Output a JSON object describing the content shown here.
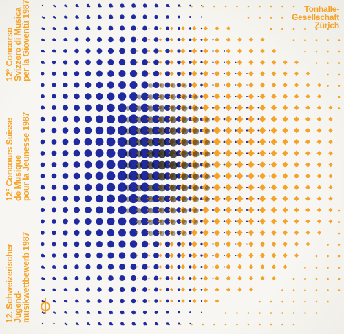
{
  "colors": {
    "background": "#f7f6f2",
    "blue": "#1f2aa0",
    "orange": "#f5a328",
    "dark": "#1a1a1a"
  },
  "organizer": {
    "lines": [
      "Tonhalle-",
      "Gesellschaft",
      "Zürich"
    ]
  },
  "title_italian": {
    "lines": [
      "12° Concorso",
      "Svizzero di Musica",
      "per la Gioventù 1987"
    ]
  },
  "title_french": {
    "lines": [
      "12° Concours Suisse",
      "de Musique",
      "pour la Jeunesse 1987"
    ]
  },
  "title_german": {
    "lines": [
      "12. Schweizerischer",
      "Jugend-",
      "musikwettbewerb 1987"
    ]
  },
  "logo": {
    "icon": "circle-phi-logo-icon"
  }
}
